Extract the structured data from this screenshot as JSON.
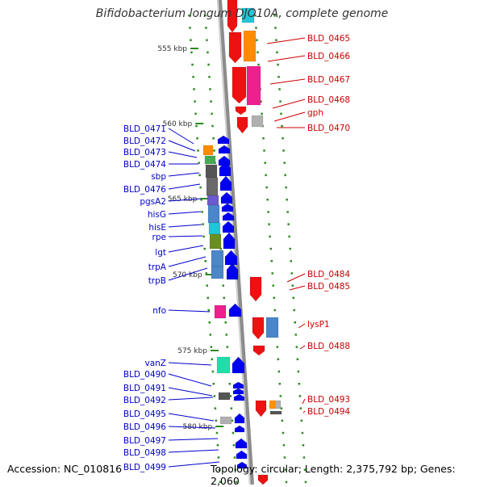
{
  "title": "Bifidobacterium longum DJO10A, complete genome",
  "footer": {
    "accession": "Accession: NC_010816",
    "summary": "Topology: circular; Length: 2,375,792 bp; Genes: 2,060"
  },
  "colors": {
    "backbone": "#8c8c8c",
    "left_labels": "#0000cc",
    "right_labels": "#cc0000",
    "ticks": "#2e8b22"
  },
  "scale_ticks": [
    "555 kbp",
    "560 kbp",
    "565 kbp",
    "570 kbp",
    "575 kbp",
    "580 kbp"
  ],
  "left_genes": [
    "BLD_0471",
    "BLD_0472",
    "BLD_0473",
    "BLD_0474",
    "sbp",
    "BLD_0476",
    "pgsA2",
    "hisG",
    "hisE",
    "rpe",
    "lgt",
    "trpA",
    "trpB",
    "nfo",
    "vanZ",
    "BLD_0490",
    "BLD_0491",
    "BLD_0492",
    "BLD_0495",
    "BLD_0496",
    "BLD_0497",
    "BLD_0498",
    "BLD_0499"
  ],
  "right_genes": [
    "BLD_0465",
    "BLD_0466",
    "BLD_0467",
    "BLD_0468",
    "gph",
    "BLD_0470",
    "BLD_0484",
    "BLD_0485",
    "lysP1",
    "BLD_0488",
    "BLD_0493",
    "BLD_0494"
  ]
}
